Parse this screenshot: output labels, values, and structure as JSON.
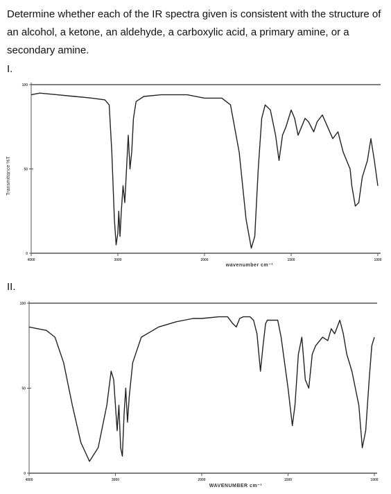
{
  "question": "Determine whether each of the IR spectra given is consistent with the structure of an alcohol, a ketone, an aldehyde, a carboxylic acid, a primary amine, or a secondary amine.",
  "chart_data": [
    {
      "type": "line",
      "label": "I.",
      "y_label": "Transmittance %T",
      "x_label": "wavenumber cm⁻¹",
      "xlim": [
        4000,
        1000
      ],
      "ylim": [
        0,
        100
      ],
      "xticks": [
        4000,
        3000,
        2000,
        1500,
        1000
      ],
      "yticks": [
        0,
        50,
        100
      ],
      "x": [
        4000,
        3900,
        3700,
        3500,
        3300,
        3150,
        3100,
        3070,
        3040,
        3020,
        3000,
        2990,
        2975,
        2960,
        2940,
        2920,
        2900,
        2880,
        2860,
        2840,
        2820,
        2790,
        2700,
        2500,
        2200,
        2000,
        1900,
        1850,
        1800,
        1760,
        1730,
        1710,
        1690,
        1670,
        1650,
        1620,
        1590,
        1570,
        1550,
        1530,
        1500,
        1480,
        1460,
        1440,
        1420,
        1400,
        1370,
        1350,
        1320,
        1290,
        1260,
        1230,
        1200,
        1180,
        1160,
        1150,
        1130,
        1110,
        1090,
        1060,
        1040,
        1020,
        1000
      ],
      "values": [
        94,
        95,
        94,
        93,
        92,
        91,
        88,
        60,
        20,
        5,
        12,
        25,
        10,
        25,
        40,
        30,
        50,
        70,
        50,
        60,
        80,
        90,
        93,
        94,
        94,
        92,
        92,
        88,
        60,
        20,
        3,
        10,
        50,
        80,
        88,
        85,
        70,
        55,
        70,
        75,
        85,
        80,
        70,
        75,
        80,
        78,
        72,
        78,
        82,
        75,
        68,
        72,
        60,
        55,
        50,
        40,
        28,
        30,
        45,
        55,
        68,
        55,
        40
      ]
    },
    {
      "type": "line",
      "label": "II.",
      "x_label": "WAVENUMBER cm⁻¹",
      "xlim": [
        4000,
        1000
      ],
      "ylim": [
        0,
        100
      ],
      "xticks": [
        4000,
        3000,
        2000,
        1500,
        1000
      ],
      "yticks": [
        0,
        50,
        100
      ],
      "x": [
        4000,
        3900,
        3800,
        3700,
        3600,
        3500,
        3400,
        3300,
        3200,
        3100,
        3050,
        3020,
        2980,
        2960,
        2940,
        2920,
        2900,
        2880,
        2860,
        2840,
        2800,
        2700,
        2500,
        2300,
        2100,
        2000,
        1900,
        1850,
        1820,
        1800,
        1780,
        1760,
        1720,
        1700,
        1680,
        1660,
        1645,
        1630,
        1620,
        1560,
        1540,
        1500,
        1475,
        1460,
        1440,
        1420,
        1400,
        1380,
        1360,
        1340,
        1300,
        1270,
        1250,
        1230,
        1200,
        1180,
        1160,
        1130,
        1110,
        1090,
        1070,
        1050,
        1030,
        1015,
        1000
      ],
      "values": [
        86,
        85,
        84,
        80,
        65,
        40,
        18,
        7,
        15,
        40,
        60,
        55,
        25,
        40,
        15,
        10,
        35,
        50,
        30,
        45,
        65,
        80,
        86,
        89,
        91,
        91,
        92,
        92,
        88,
        86,
        91,
        92,
        92,
        90,
        82,
        60,
        75,
        88,
        90,
        90,
        80,
        50,
        28,
        40,
        70,
        80,
        55,
        50,
        70,
        75,
        80,
        78,
        85,
        82,
        90,
        82,
        70,
        60,
        50,
        40,
        15,
        25,
        55,
        75,
        80
      ]
    }
  ]
}
